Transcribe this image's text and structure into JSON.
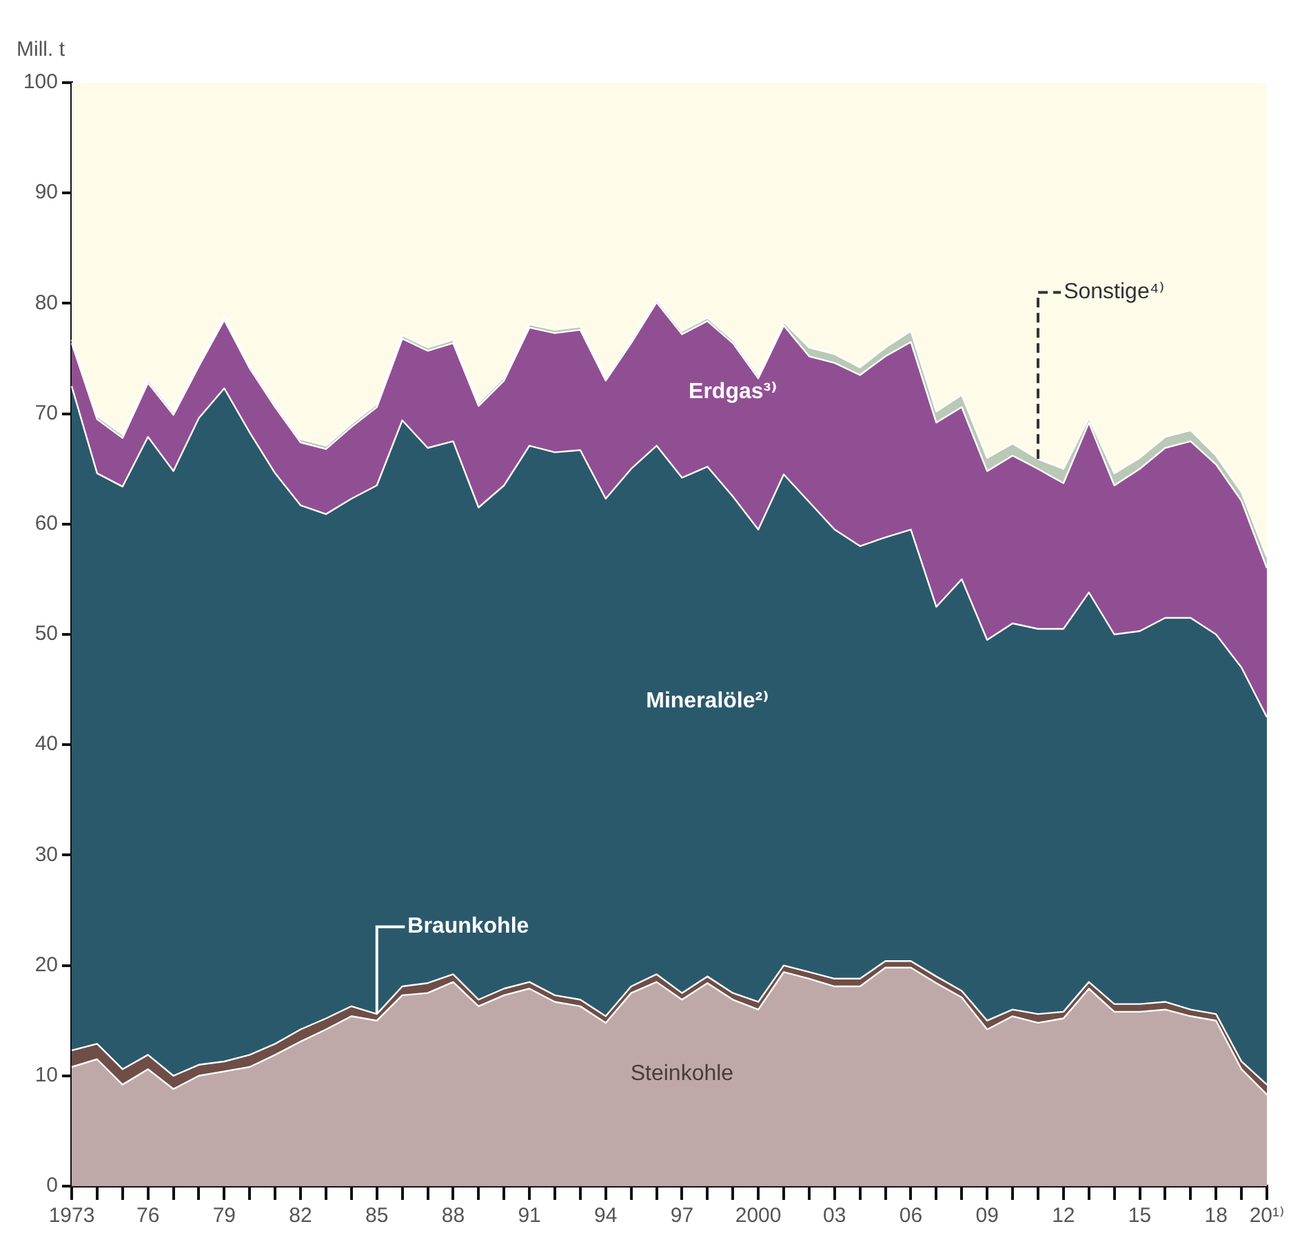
{
  "chart_data": {
    "type": "area",
    "stacked": true,
    "ylabel": "Mill. t",
    "categories": [
      "1973",
      null,
      null,
      "76",
      null,
      null,
      "79",
      null,
      null,
      "82",
      null,
      null,
      "85",
      null,
      null,
      "88",
      null,
      null,
      "91",
      null,
      null,
      "94",
      null,
      null,
      "97",
      null,
      null,
      "2000",
      null,
      null,
      "03",
      null,
      null,
      "06",
      null,
      null,
      "09",
      null,
      null,
      "12",
      null,
      null,
      "15",
      null,
      null,
      "18",
      null,
      "20¹⁾"
    ],
    "ylim": [
      0,
      100
    ],
    "yticks": [
      0,
      10,
      20,
      30,
      40,
      50,
      60,
      70,
      80,
      90,
      100
    ],
    "series": [
      {
        "name": "Steinkohle",
        "color": "#bfa9a8",
        "values": [
          10.8,
          11.5,
          9.2,
          10.6,
          8.8,
          10.0,
          10.4,
          10.8,
          11.9,
          13.1,
          14.2,
          15.4,
          15.0,
          17.3,
          17.5,
          18.5,
          16.3,
          17.3,
          17.9,
          16.7,
          16.3,
          14.8,
          17.5,
          18.5,
          16.9,
          18.4,
          16.9,
          16.0,
          19.4,
          18.8,
          18.1,
          18.1,
          19.8,
          19.8,
          18.4,
          17.1,
          14.2,
          15.4,
          14.8,
          15.2,
          17.9,
          15.8,
          15.8,
          16.0,
          15.4,
          15.0,
          10.6,
          8.3
        ]
      },
      {
        "name": "Braunkohle",
        "color": "#6e4e46",
        "values": [
          1.5,
          1.4,
          1.4,
          1.3,
          1.2,
          1.0,
          0.9,
          1.1,
          1.0,
          1.1,
          1.0,
          0.9,
          0.6,
          0.8,
          0.9,
          0.7,
          0.6,
          0.6,
          0.6,
          0.6,
          0.6,
          0.6,
          0.6,
          0.7,
          0.6,
          0.6,
          0.6,
          0.7,
          0.6,
          0.6,
          0.7,
          0.7,
          0.6,
          0.6,
          0.6,
          0.6,
          0.8,
          0.6,
          0.8,
          0.6,
          0.6,
          0.7,
          0.7,
          0.7,
          0.6,
          0.6,
          0.7,
          0.9
        ]
      },
      {
        "name": "Mineralöle²⁾",
        "color": "#2b596c",
        "values": [
          60.2,
          51.7,
          52.8,
          56.0,
          54.8,
          58.6,
          61.0,
          56.4,
          51.7,
          47.5,
          45.7,
          46.0,
          47.9,
          51.3,
          48.5,
          48.3,
          44.6,
          45.6,
          48.6,
          49.2,
          49.8,
          46.9,
          46.9,
          47.9,
          46.7,
          46.2,
          45.0,
          42.8,
          44.5,
          42.6,
          40.7,
          39.2,
          38.4,
          39.1,
          33.5,
          37.3,
          34.5,
          35.0,
          34.9,
          34.7,
          35.3,
          33.5,
          33.8,
          34.8,
          35.5,
          34.4,
          35.7,
          33.3
        ]
      },
      {
        "name": "Erdgas³⁾",
        "color": "#914f93",
        "values": [
          3.9,
          4.9,
          4.4,
          4.9,
          5.1,
          4.7,
          6.2,
          5.8,
          6.0,
          5.7,
          5.9,
          6.5,
          7.1,
          7.4,
          8.8,
          8.9,
          9.2,
          9.5,
          10.7,
          10.8,
          10.9,
          10.7,
          11.4,
          13.0,
          13.0,
          13.2,
          13.9,
          13.7,
          13.5,
          13.2,
          15.1,
          15.5,
          16.4,
          17.0,
          16.7,
          15.6,
          15.3,
          15.2,
          14.5,
          13.2,
          15.4,
          13.5,
          14.7,
          15.4,
          16.0,
          15.4,
          15.1,
          13.5
        ]
      },
      {
        "name": "Sonstige⁴⁾",
        "color": "#b9c9b6",
        "values": [
          0.3,
          0.3,
          0.3,
          0.3,
          0.3,
          0.3,
          0.3,
          0.3,
          0.3,
          0.3,
          0.3,
          0.3,
          0.3,
          0.3,
          0.3,
          0.3,
          0.3,
          0.3,
          0.3,
          0.3,
          0.3,
          0.3,
          0.3,
          0.3,
          0.3,
          0.3,
          0.3,
          0.3,
          0.3,
          0.8,
          0.8,
          0.7,
          0.8,
          1.0,
          1.0,
          1.1,
          1.2,
          1.1,
          0.9,
          1.3,
          0.4,
          1.1,
          1.0,
          1.0,
          1.0,
          0.8,
          0.8,
          1.0
        ]
      }
    ]
  }
}
